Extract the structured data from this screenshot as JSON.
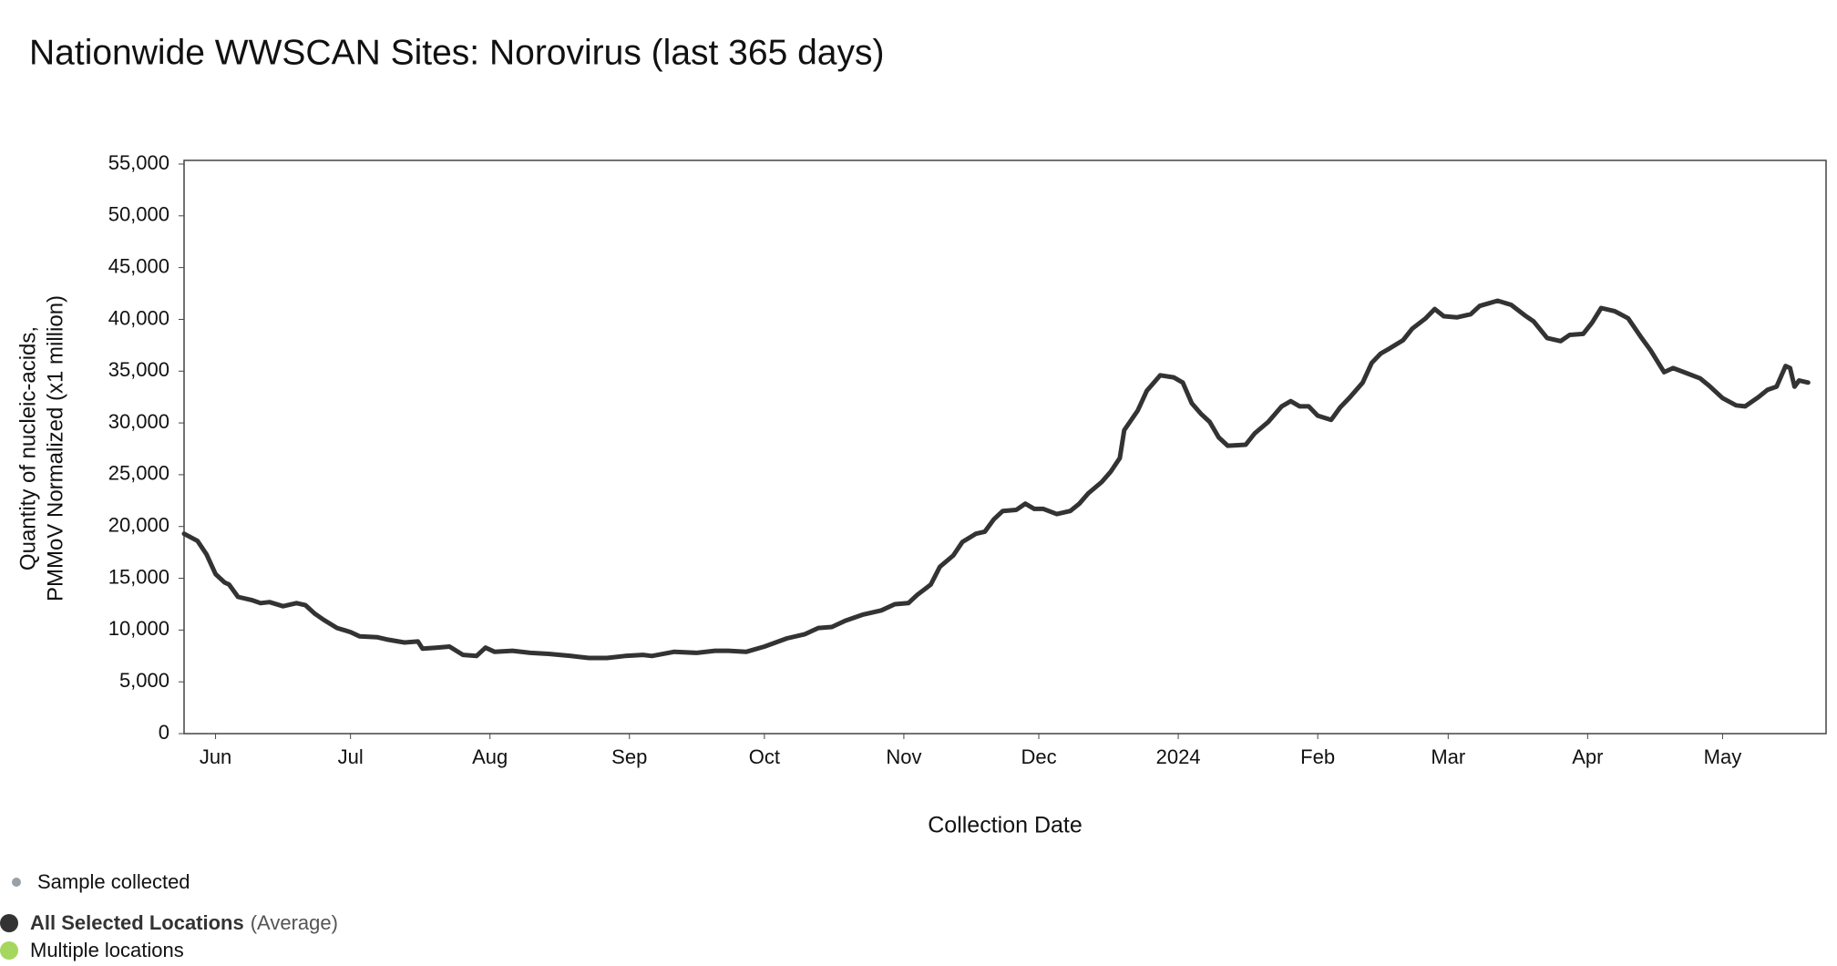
{
  "chart_data": {
    "type": "line",
    "title": "Nationwide WWSCAN Sites: Norovirus (last 365 days)",
    "y_label": [
      "Quantity of nucleic-acids,",
      "PMMoV Normalized (x1 million)"
    ],
    "x_label": "Collection Date",
    "xlim": [
      "2023-05-25",
      "2024-05-24"
    ],
    "xticks": [
      {
        "value": "2023-06-01",
        "label": "Jun"
      },
      {
        "value": "2023-07-01",
        "label": "Jul"
      },
      {
        "value": "2023-08-01",
        "label": "Aug"
      },
      {
        "value": "2023-09-01",
        "label": "Sep"
      },
      {
        "value": "2023-10-01",
        "label": "Oct"
      },
      {
        "value": "2023-11-01",
        "label": "Nov"
      },
      {
        "value": "2023-12-01",
        "label": "Dec"
      },
      {
        "value": "2024-01-01",
        "label": "2024"
      },
      {
        "value": "2024-02-01",
        "label": "Feb"
      },
      {
        "value": "2024-03-01",
        "label": "Mar"
      },
      {
        "value": "2024-04-01",
        "label": "Apr"
      },
      {
        "value": "2024-05-01",
        "label": "May"
      }
    ],
    "ylim": [
      0,
      55000
    ],
    "yticks": [
      {
        "value": 0,
        "label": "0"
      },
      {
        "value": 5000,
        "label": "5,000"
      },
      {
        "value": 10000,
        "label": "10,000"
      },
      {
        "value": 15000,
        "label": "15,000"
      },
      {
        "value": 20000,
        "label": "20,000"
      },
      {
        "value": 25000,
        "label": "25,000"
      },
      {
        "value": 30000,
        "label": "30,000"
      },
      {
        "value": 35000,
        "label": "35,000"
      },
      {
        "value": 40000,
        "label": "40,000"
      },
      {
        "value": 45000,
        "label": "45,000"
      },
      {
        "value": 50000,
        "label": "50,000"
      },
      {
        "value": 55000,
        "label": "55,000"
      }
    ],
    "x": [
      "2023-05-25",
      "2023-05-28",
      "2023-05-30",
      "2023-06-01",
      "2023-06-03",
      "2023-06-04",
      "2023-06-06",
      "2023-06-09",
      "2023-06-11",
      "2023-06-13",
      "2023-06-16",
      "2023-06-19",
      "2023-06-21",
      "2023-06-23",
      "2023-06-25",
      "2023-06-28",
      "2023-07-01",
      "2023-07-03",
      "2023-07-07",
      "2023-07-09",
      "2023-07-13",
      "2023-07-16",
      "2023-07-17",
      "2023-07-20",
      "2023-07-23",
      "2023-07-26",
      "2023-07-29",
      "2023-07-31",
      "2023-08-02",
      "2023-08-06",
      "2023-08-10",
      "2023-08-14",
      "2023-08-19",
      "2023-08-23",
      "2023-08-27",
      "2023-08-31",
      "2023-09-04",
      "2023-09-06",
      "2023-09-11",
      "2023-09-16",
      "2023-09-20",
      "2023-09-23",
      "2023-09-27",
      "2023-10-01",
      "2023-10-06",
      "2023-10-10",
      "2023-10-13",
      "2023-10-16",
      "2023-10-19",
      "2023-10-23",
      "2023-10-27",
      "2023-10-30",
      "2023-11-02",
      "2023-11-04",
      "2023-11-07",
      "2023-11-09",
      "2023-11-12",
      "2023-11-14",
      "2023-11-17",
      "2023-11-19",
      "2023-11-21",
      "2023-11-23",
      "2023-11-26",
      "2023-11-28",
      "2023-11-30",
      "2023-12-02",
      "2023-12-05",
      "2023-12-08",
      "2023-12-10",
      "2023-12-12",
      "2023-12-15",
      "2023-12-17",
      "2023-12-19",
      "2023-12-20",
      "2023-12-23",
      "2023-12-25",
      "2023-12-28",
      "2023-12-31",
      "2024-01-02",
      "2024-01-04",
      "2024-01-06",
      "2024-01-08",
      "2024-01-10",
      "2024-01-12",
      "2024-01-16",
      "2024-01-18",
      "2024-01-21",
      "2024-01-24",
      "2024-01-26",
      "2024-01-28",
      "2024-01-30",
      "2024-02-01",
      "2024-02-04",
      "2024-02-06",
      "2024-02-08",
      "2024-02-11",
      "2024-02-13",
      "2024-02-15",
      "2024-02-17",
      "2024-02-20",
      "2024-02-22",
      "2024-02-25",
      "2024-02-27",
      "2024-02-29",
      "2024-03-03",
      "2024-03-06",
      "2024-03-08",
      "2024-03-12",
      "2024-03-15",
      "2024-03-18",
      "2024-03-20",
      "2024-03-23",
      "2024-03-26",
      "2024-03-28",
      "2024-03-31",
      "2024-04-02",
      "2024-04-04",
      "2024-04-07",
      "2024-04-10",
      "2024-04-13",
      "2024-04-15",
      "2024-04-18",
      "2024-04-20",
      "2024-04-23",
      "2024-04-26",
      "2024-04-28",
      "2024-05-01",
      "2024-05-04",
      "2024-05-06",
      "2024-05-09",
      "2024-05-11",
      "2024-05-13",
      "2024-05-15",
      "2024-05-16",
      "2024-05-17",
      "2024-05-18",
      "2024-05-20"
    ],
    "series": [
      {
        "name": "All Selected Locations",
        "name_note": "(Average)",
        "color": "#333333",
        "values": [
          19300,
          18600,
          17300,
          15400,
          14600,
          14400,
          13200,
          12900,
          12600,
          12700,
          12300,
          12600,
          12400,
          11600,
          11000,
          10200,
          9800,
          9400,
          9300,
          9100,
          8800,
          8900,
          8200,
          8300,
          8400,
          7600,
          7500,
          8300,
          7900,
          8000,
          7800,
          7700,
          7500,
          7300,
          7300,
          7500,
          7600,
          7500,
          7900,
          7800,
          8000,
          8000,
          7900,
          8400,
          9200,
          9600,
          10200,
          10300,
          10900,
          11500,
          11900,
          12500,
          12600,
          13400,
          14400,
          16100,
          17200,
          18500,
          19300,
          19500,
          20700,
          21500,
          21600,
          22200,
          21700,
          21700,
          21200,
          21500,
          22200,
          23200,
          24300,
          25300,
          26600,
          29300,
          31200,
          33100,
          34600,
          34400,
          33900,
          31900,
          30900,
          30100,
          28600,
          27800,
          27900,
          29000,
          30100,
          31600,
          32100,
          31600,
          31600,
          30700,
          30300,
          31500,
          32400,
          33900,
          35800,
          36700,
          37200,
          38000,
          39100,
          40100,
          41000,
          40300,
          40200,
          40500,
          41300,
          41800,
          41400,
          40400,
          39800,
          38200,
          37900,
          38500,
          38600,
          39700,
          41100,
          40800,
          40100,
          38200,
          37000,
          34900,
          35300,
          34800,
          34300,
          33600,
          32400,
          31700,
          31600,
          32500,
          33200,
          33500,
          35500,
          35300,
          33500,
          34100,
          33900
        ]
      }
    ],
    "legend_items": [
      {
        "label": "Sample collected",
        "color": "#9aa0a8"
      },
      {
        "label": "Multiple locations",
        "color": "#a5d65e"
      }
    ]
  }
}
